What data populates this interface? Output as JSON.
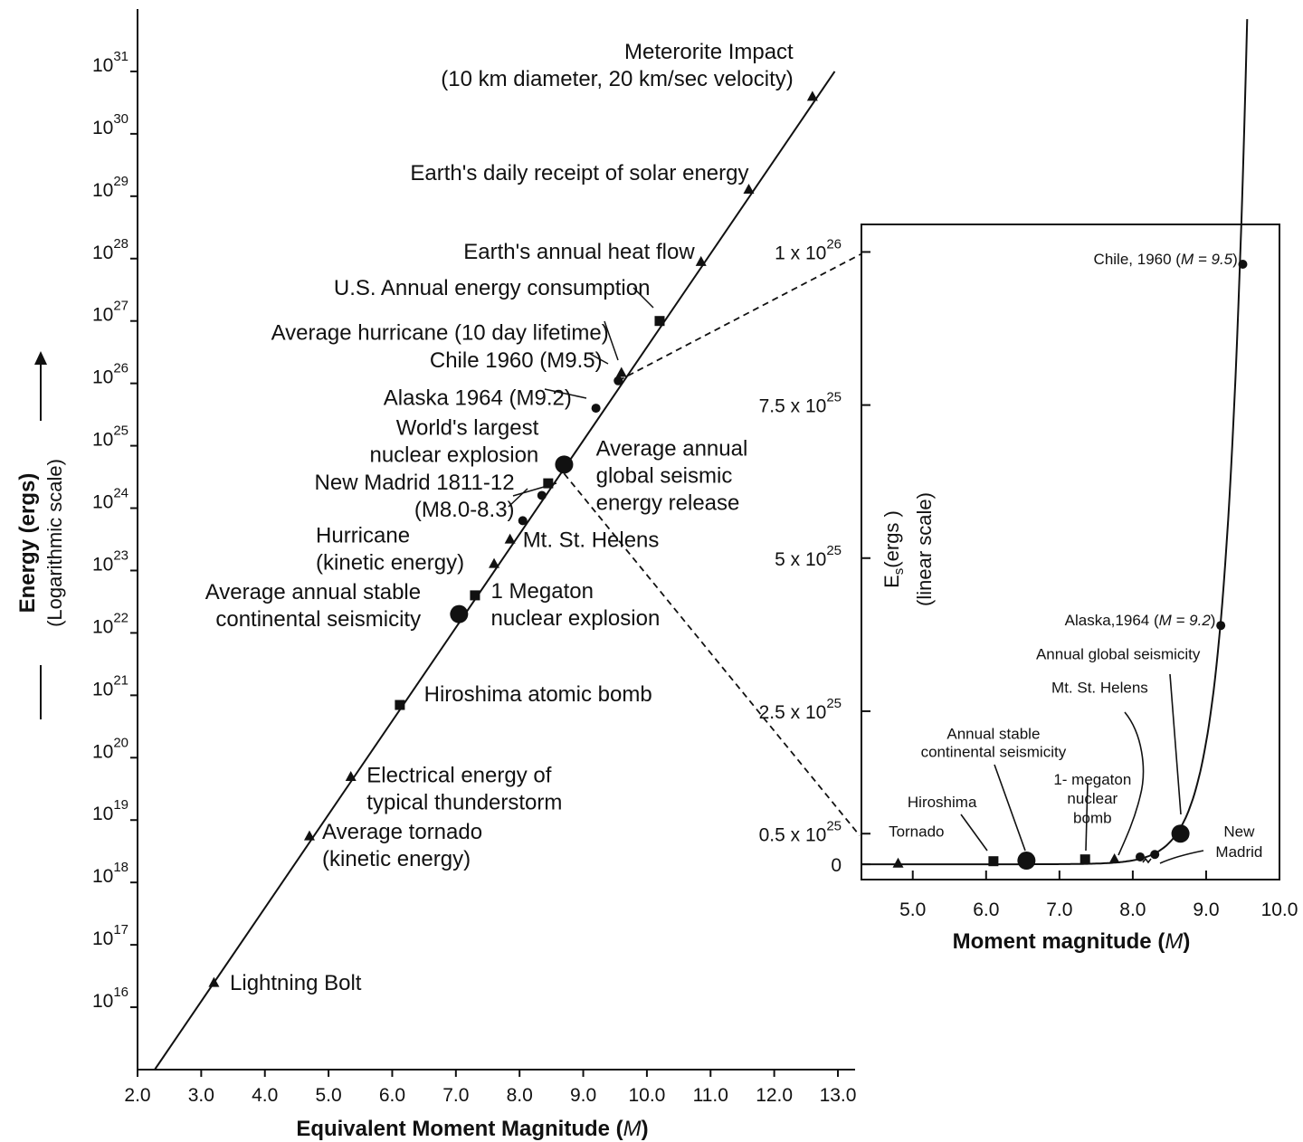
{
  "main": {
    "type": "scatter",
    "ylog": true,
    "x_axis": {
      "title": "Equivalent Moment Magnitude",
      "title_var": "M",
      "range": [
        2.0,
        13.0
      ],
      "ticks": [
        "2.0",
        "3.0",
        "4.0",
        "5.0",
        "6.0",
        "7.0",
        "8.0",
        "9.0",
        "10.0",
        "11.0",
        "12.0",
        "13.0"
      ]
    },
    "y_axis": {
      "title": "Energy (ergs)",
      "subtitle": "(Logarithmic scale)",
      "range": [
        1000000000000000.0,
        1e+32
      ],
      "ticks": [
        {
          "base": "10",
          "exp": "16"
        },
        {
          "base": "10",
          "exp": "17"
        },
        {
          "base": "10",
          "exp": "18"
        },
        {
          "base": "10",
          "exp": "19"
        },
        {
          "base": "10",
          "exp": "20"
        },
        {
          "base": "10",
          "exp": "21"
        },
        {
          "base": "10",
          "exp": "22"
        },
        {
          "base": "10",
          "exp": "23"
        },
        {
          "base": "10",
          "exp": "24"
        },
        {
          "base": "10",
          "exp": "25"
        },
        {
          "base": "10",
          "exp": "26"
        },
        {
          "base": "10",
          "exp": "27"
        },
        {
          "base": "10",
          "exp": "28"
        },
        {
          "base": "10",
          "exp": "29"
        },
        {
          "base": "10",
          "exp": "30"
        },
        {
          "base": "10",
          "exp": "31"
        }
      ]
    },
    "line": [
      [
        2.27,
        1000000000000000.0
      ],
      [
        12.95,
        1e+31
      ]
    ],
    "points": [
      {
        "m": 3.2,
        "energy": 2.5e+16,
        "marker": "triangle"
      },
      {
        "m": 4.7,
        "energy": 5.6e+18,
        "marker": "triangle"
      },
      {
        "m": 5.35,
        "energy": 5e+19,
        "marker": "triangle"
      },
      {
        "m": 6.12,
        "energy": 7e+20,
        "marker": "square"
      },
      {
        "m": 7.05,
        "energy": 2e+22,
        "marker": "big-circle"
      },
      {
        "m": 7.3,
        "energy": 4e+22,
        "marker": "square"
      },
      {
        "m": 7.6,
        "energy": 1.3e+23,
        "marker": "triangle"
      },
      {
        "m": 7.85,
        "energy": 3.2e+23,
        "marker": "triangle"
      },
      {
        "m": 8.05,
        "energy": 6.3e+23,
        "marker": "circle"
      },
      {
        "m": 8.35,
        "energy": 1.6e+24,
        "marker": "circle"
      },
      {
        "m": 8.45,
        "energy": 2.5e+24,
        "marker": "square"
      },
      {
        "m": 8.7,
        "energy": 5e+24,
        "marker": "big-circle"
      },
      {
        "m": 9.2,
        "energy": 4e+25,
        "marker": "circle"
      },
      {
        "m": 9.55,
        "energy": 1.1e+26,
        "marker": "circle"
      },
      {
        "m": 9.6,
        "energy": 1.5e+26,
        "marker": "triangle"
      },
      {
        "m": 10.2,
        "energy": 1e+27,
        "marker": "square"
      },
      {
        "m": 10.85,
        "energy": 9e+27,
        "marker": "triangle"
      },
      {
        "m": 11.6,
        "energy": 1.3e+29,
        "marker": "triangle"
      },
      {
        "m": 12.6,
        "energy": 4e+30,
        "marker": "triangle"
      }
    ],
    "labels": [
      {
        "lines": [
          "Meterorite Impact",
          "(10 km diameter, 20 km/sec velocity)"
        ],
        "anchor": "end",
        "m": 12.3,
        "energy": 1.6e+31
      },
      {
        "lines": [
          "Earth's daily receipt of solar energy"
        ],
        "anchor": "end",
        "m": 11.6,
        "energy": 1.8e+29
      },
      {
        "lines": [
          "Earth's annual heat flow"
        ],
        "anchor": "end",
        "m": 10.75,
        "energy": 1e+28
      },
      {
        "lines": [
          "U.S. Annual energy consumption"
        ],
        "anchor": "end",
        "m": 10.05,
        "energy": 2.6e+27
      },
      {
        "lines": [
          "Average hurricane (10 day lifetime)"
        ],
        "anchor": "end",
        "m": 9.4,
        "energy": 5e+26
      },
      {
        "lines": [
          "Chile 1960 (M9.5)"
        ],
        "anchor": "end",
        "m": 9.3,
        "energy": 1.8e+26
      },
      {
        "lines": [
          "Alaska 1964 (M9.2)"
        ],
        "anchor": "end",
        "m": 8.82,
        "energy": 4.5e+25
      },
      {
        "lines": [
          "World's largest",
          "nuclear explosion"
        ],
        "anchor": "end",
        "m": 8.3,
        "energy": 1.5e+25
      },
      {
        "lines": [
          "Average annual",
          "global seismic",
          "energy release"
        ],
        "anchor": "start",
        "m": 9.2,
        "energy": 7e+24
      },
      {
        "lines": [
          "New Madrid 1811-12",
          "(M8.0-8.3)"
        ],
        "anchor": "end",
        "m": 7.92,
        "energy": 2e+24
      },
      {
        "lines": [
          "Hurricane",
          "(kinetic energy)"
        ],
        "anchor": "start",
        "m": 4.8,
        "energy": 2.8e+23
      },
      {
        "lines": [
          "Mt. St. Helens"
        ],
        "anchor": "start",
        "m": 8.05,
        "energy": 2.4e+23
      },
      {
        "lines": [
          "1 Megaton",
          "nuclear explosion"
        ],
        "anchor": "start",
        "m": 7.55,
        "energy": 3.6e+22
      },
      {
        "lines": [
          "Average annual stable",
          "continental seismicity"
        ],
        "anchor": "end",
        "m": 6.45,
        "energy": 3.5e+22
      },
      {
        "lines": [
          "Hiroshima atomic bomb"
        ],
        "anchor": "start",
        "m": 6.5,
        "energy": 8e+20
      },
      {
        "lines": [
          "Electrical energy of",
          "typical thunderstorm"
        ],
        "anchor": "start",
        "m": 5.6,
        "energy": 4e+19
      },
      {
        "lines": [
          "Average tornado",
          "(kinetic energy)"
        ],
        "anchor": "start",
        "m": 4.9,
        "energy": 5e+18
      },
      {
        "lines": [
          "Lightning Bolt"
        ],
        "anchor": "start",
        "m": 3.45,
        "energy": 1.9e+16
      }
    ]
  },
  "inset": {
    "type": "line",
    "x_axis": {
      "title": "Moment magnitude",
      "title_var": "M",
      "range": [
        4.3,
        10.0
      ],
      "ticks": [
        "5.0",
        "6.0",
        "7.0",
        "8.0",
        "9.0",
        "10.0"
      ]
    },
    "y_axis": {
      "title_base": "E",
      "title_sub": "s",
      "title_rest": "(ergs )",
      "subtitle": "(linear scale)",
      "range": [
        -2.5e+24,
        1.045e+26
      ],
      "ticks": [
        {
          "value": 0,
          "text": "0",
          "exp": ""
        },
        {
          "value": 5e+24,
          "text": "0.5 x 10",
          "exp": "25"
        },
        {
          "value": 2.5e+25,
          "text": "2.5 x 10",
          "exp": "25"
        },
        {
          "value": 5e+25,
          "text": "5 x 10",
          "exp": "25"
        },
        {
          "value": 7.5e+25,
          "text": "7.5 x 10",
          "exp": "25"
        },
        {
          "value": 1e+26,
          "text": "1 x 10",
          "exp": "26"
        }
      ]
    },
    "points": [
      {
        "m": 4.8,
        "energy": 2e+23,
        "marker": "triangle"
      },
      {
        "m": 6.1,
        "energy": 5e+23,
        "marker": "square"
      },
      {
        "m": 6.55,
        "energy": 6e+23,
        "marker": "big-circle"
      },
      {
        "m": 7.35,
        "energy": 8e+23,
        "marker": "square"
      },
      {
        "m": 7.75,
        "energy": 9e+23,
        "marker": "triangle"
      },
      {
        "m": 8.1,
        "energy": 1.2e+24,
        "marker": "circle"
      },
      {
        "m": 8.3,
        "energy": 1.6e+24,
        "marker": "circle"
      },
      {
        "m": 8.65,
        "energy": 5e+24,
        "marker": "big-circle"
      },
      {
        "m": 9.2,
        "energy": 3.9e+25,
        "marker": "circle"
      },
      {
        "m": 9.5,
        "energy": 9.8e+25,
        "marker": "circle"
      }
    ],
    "labels": [
      {
        "text": "Chile, 1960",
        "var": "M = 9.5",
        "anchor": "end",
        "m": 9.43,
        "energy": 9.8e+25
      },
      {
        "text": "Alaska,1964",
        "var": "M = 9.2",
        "anchor": "end",
        "m": 9.13,
        "energy": 3.9e+25
      },
      {
        "text": "Annual global seismicity",
        "anchor": "middle",
        "m": 7.8,
        "energy": 3.35e+25
      },
      {
        "text": "Mt. St. Helens",
        "anchor": "middle",
        "m": 7.55,
        "energy": 2.8e+25
      },
      {
        "text": "Annual stable",
        "anchor": "middle",
        "m": 6.1,
        "energy": 2.05e+25
      },
      {
        "text": "continental seismicity",
        "anchor": "middle",
        "m": 6.1,
        "energy": 1.75e+25
      },
      {
        "text": "1- megaton",
        "anchor": "middle",
        "m": 7.45,
        "energy": 1.3e+25
      },
      {
        "text": "nuclear",
        "anchor": "middle",
        "m": 7.45,
        "energy": 9.9e+24
      },
      {
        "text": "bomb",
        "anchor": "middle",
        "m": 7.45,
        "energy": 6.7e+24
      },
      {
        "text": "Hiroshima",
        "anchor": "middle",
        "m": 5.4,
        "energy": 9.3e+24
      },
      {
        "text": "Tornado",
        "anchor": "middle",
        "m": 5.05,
        "energy": 4.5e+24
      },
      {
        "text": "New",
        "anchor": "middle",
        "m": 9.45,
        "energy": 4.5e+24
      },
      {
        "text": "Madrid",
        "anchor": "middle",
        "m": 9.45,
        "energy": 1.2e+24
      }
    ]
  }
}
